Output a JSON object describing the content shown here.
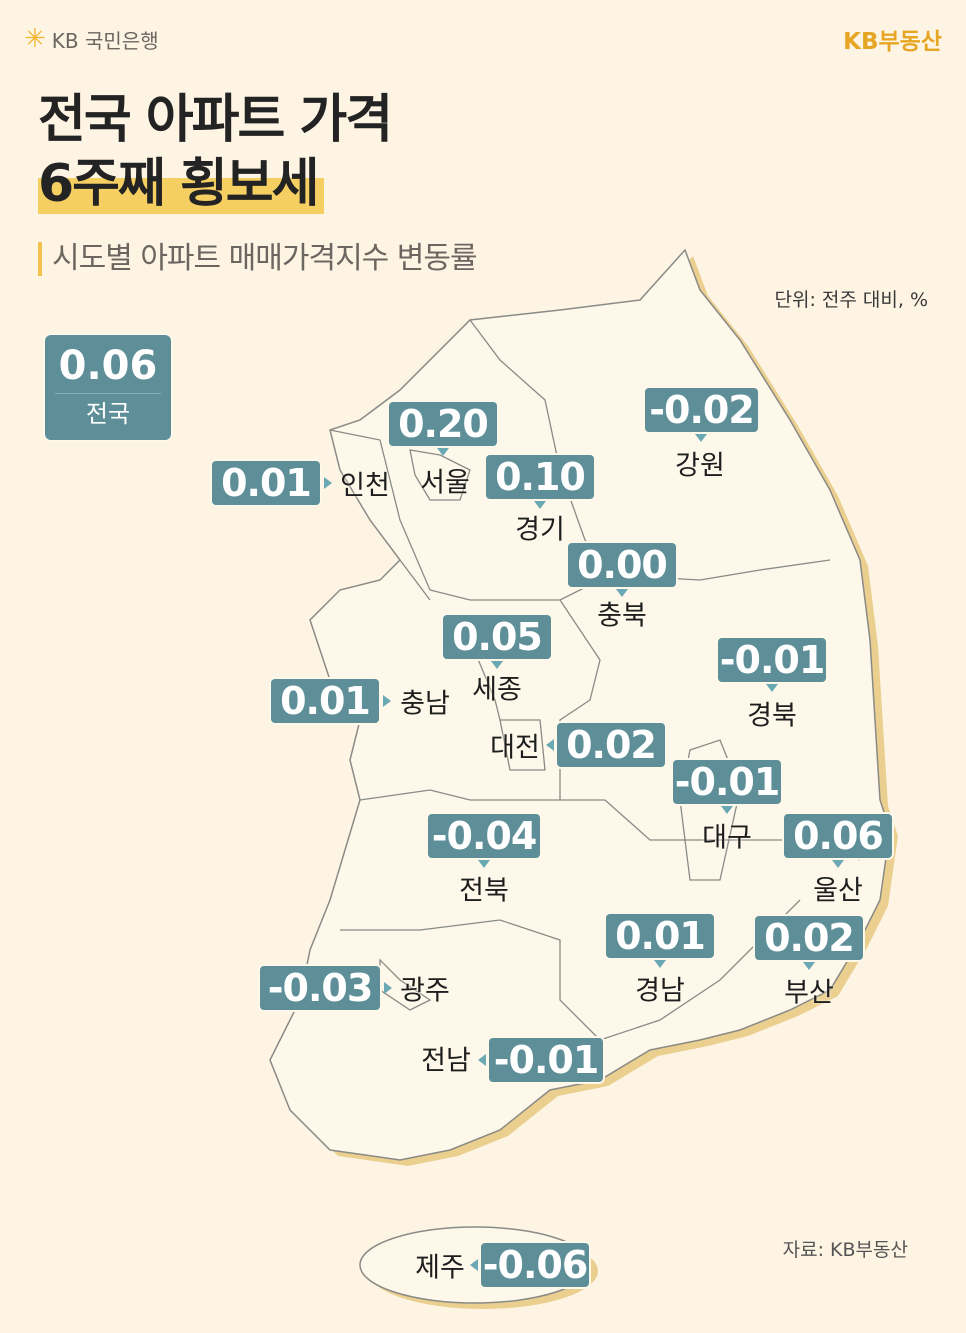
{
  "header": {
    "bank_logo": "KB 국민은행",
    "brand": "KB부동산"
  },
  "title": {
    "line1": "전국 아파트 가격",
    "line2": "6주째 횡보세"
  },
  "subtitle": "시도별 아파트 매매가격지수 변동률",
  "unit": "단위: 전주 대비, %",
  "source": "자료: KB부동산",
  "colors": {
    "background": "#fdf4e4",
    "label_box": "#5e8f98",
    "map_fill": "#fdf8ea",
    "map_shadow": "#ebcf8f",
    "highlight": "#f5cf62"
  },
  "national": {
    "name": "전국",
    "value": "0.06"
  },
  "regions": [
    {
      "name": "서울",
      "value": "0.20"
    },
    {
      "name": "인천",
      "value": "0.01"
    },
    {
      "name": "경기",
      "value": "0.10"
    },
    {
      "name": "강원",
      "value": "-0.02"
    },
    {
      "name": "충북",
      "value": "0.00"
    },
    {
      "name": "세종",
      "value": "0.05"
    },
    {
      "name": "충남",
      "value": "0.01"
    },
    {
      "name": "대전",
      "value": "0.02"
    },
    {
      "name": "경북",
      "value": "-0.01"
    },
    {
      "name": "대구",
      "value": "-0.01"
    },
    {
      "name": "울산",
      "value": "0.06"
    },
    {
      "name": "전북",
      "value": "-0.04"
    },
    {
      "name": "경남",
      "value": "0.01"
    },
    {
      "name": "부산",
      "value": "0.02"
    },
    {
      "name": "광주",
      "value": "-0.03"
    },
    {
      "name": "전남",
      "value": "-0.01"
    },
    {
      "name": "제주",
      "value": "-0.06"
    }
  ]
}
